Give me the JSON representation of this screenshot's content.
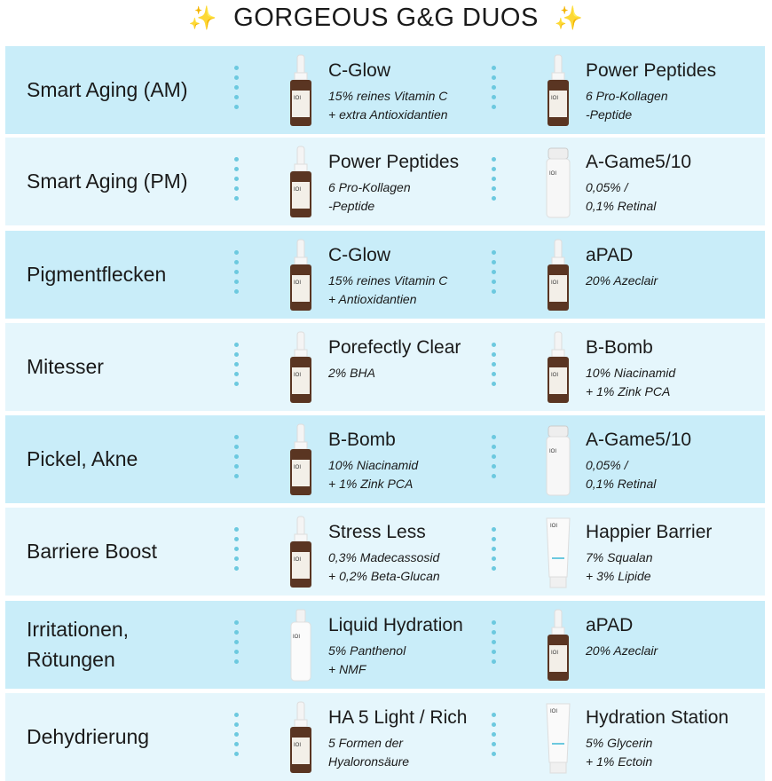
{
  "title": "GORGEOUS G&G DUOS",
  "title_icon": "sparkles-icon",
  "colors": {
    "row_dark": "#c9edf9",
    "row_light": "#e5f6fc",
    "dots": "#6cc9df"
  },
  "rows": [
    {
      "label": "Smart Aging (AM)",
      "a": {
        "name": "C-Glow",
        "desc": [
          "15% reines Vitamin C",
          "+ extra Antioxidantien"
        ],
        "icon": "dropper"
      },
      "b": {
        "name": "Power Peptides",
        "desc": [
          "6 Pro-Kollagen",
          "-Peptide"
        ],
        "icon": "dropper"
      }
    },
    {
      "label": "Smart Aging (PM)",
      "a": {
        "name": "Power Peptides",
        "desc": [
          "6 Pro-Kollagen",
          "-Peptide"
        ],
        "icon": "dropper"
      },
      "b": {
        "name": "A-Game5/10",
        "desc": [
          "0,05% /",
          "0,1% Retinal"
        ],
        "icon": "pump"
      }
    },
    {
      "label": "Pigmentflecken",
      "a": {
        "name": "C-Glow",
        "desc": [
          "15% reines Vitamin C",
          "+ Antioxidantien"
        ],
        "icon": "dropper"
      },
      "b": {
        "name": "aPAD",
        "desc": [
          "20% Azeclair"
        ],
        "icon": "dropper"
      }
    },
    {
      "label": "Mitesser",
      "a": {
        "name": "Porefectly Clear",
        "desc": [
          "2% BHA"
        ],
        "icon": "dropper"
      },
      "b": {
        "name": "B-Bomb",
        "desc": [
          "10% Niacinamid",
          "+ 1% Zink PCA"
        ],
        "icon": "dropper"
      }
    },
    {
      "label": "Pickel, Akne",
      "a": {
        "name": "B-Bomb",
        "desc": [
          "10% Niacinamid",
          "+ 1% Zink PCA"
        ],
        "icon": "dropper"
      },
      "b": {
        "name": "A-Game5/10",
        "desc": [
          "0,05% /",
          "0,1% Retinal"
        ],
        "icon": "pump"
      }
    },
    {
      "label": "Barriere Boost",
      "a": {
        "name": "Stress Less",
        "desc": [
          "0,3% Madecassosid",
          "+ 0,2% Beta-Glucan"
        ],
        "icon": "dropper"
      },
      "b": {
        "name": "Happier Barrier",
        "desc": [
          "7% Squalan",
          "+ 3% Lipide"
        ],
        "icon": "tube"
      }
    },
    {
      "label": "Irritationen,\nRötungen",
      "a": {
        "name": "Liquid Hydration",
        "desc": [
          "5% Panthenol",
          "+ NMF"
        ],
        "icon": "spray"
      },
      "b": {
        "name": "aPAD",
        "desc": [
          "20% Azeclair"
        ],
        "icon": "dropper"
      }
    },
    {
      "label": "Dehydrierung",
      "a": {
        "name": "HA 5 Light / Rich",
        "desc": [
          "5 Formen der",
          "Hyaloronsäure"
        ],
        "icon": "dropper"
      },
      "b": {
        "name": "Hydration Station",
        "desc": [
          "5% Glycerin",
          "+ 1% Ectoin"
        ],
        "icon": "tube"
      }
    }
  ]
}
